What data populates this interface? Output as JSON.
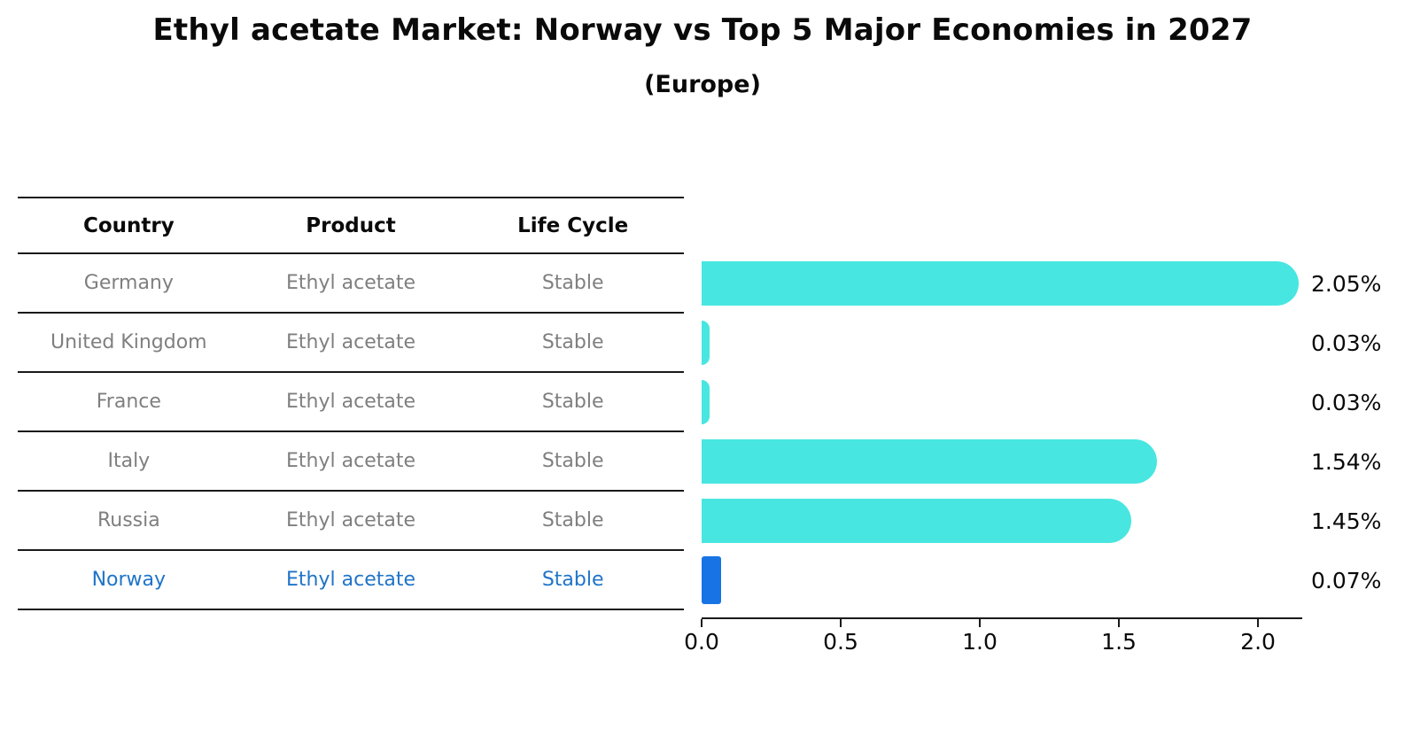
{
  "title": "Ethyl acetate Market: Norway vs Top 5 Major Economies in 2027",
  "subtitle": "(Europe)",
  "table": {
    "headers": [
      "Country",
      "Product",
      "Life Cycle"
    ],
    "rows": [
      {
        "country": "Germany",
        "product": "Ethyl acetate",
        "life_cycle": "Stable",
        "highlight": false
      },
      {
        "country": "United Kingdom",
        "product": "Ethyl acetate",
        "life_cycle": "Stable",
        "highlight": false
      },
      {
        "country": "France",
        "product": "Ethyl acetate",
        "life_cycle": "Stable",
        "highlight": false
      },
      {
        "country": "Italy",
        "product": "Ethyl acetate",
        "life_cycle": "Stable",
        "highlight": false
      },
      {
        "country": "Russia",
        "product": "Ethyl acetate",
        "life_cycle": "Stable",
        "highlight": false
      },
      {
        "country": "Norway",
        "product": "Ethyl acetate",
        "life_cycle": "Stable",
        "highlight": true
      }
    ]
  },
  "chart_data": {
    "type": "bar",
    "orientation": "horizontal",
    "title": "Ethyl acetate Market: Norway vs Top 5 Major Economies in 2027",
    "subtitle": "(Europe)",
    "categories": [
      "Germany",
      "United Kingdom",
      "France",
      "Italy",
      "Russia",
      "Norway"
    ],
    "values": [
      2.05,
      0.03,
      0.03,
      1.54,
      1.45,
      0.07
    ],
    "labels": [
      "2.05%",
      "0.03%",
      "0.03%",
      "1.54%",
      "1.45%",
      "0.07%"
    ],
    "tick_values": [
      0.0,
      0.5,
      1.0,
      1.5,
      2.0
    ],
    "tick_labels": [
      "0.0",
      "0.5",
      "1.0",
      "1.5",
      "2.0"
    ],
    "xlim": [
      0,
      2.159
    ],
    "xlabel": "",
    "ylabel": "",
    "grid": false,
    "legend": "none",
    "bar_color": "#48E6E0",
    "highlight_color": "#1874E5",
    "highlight_index": 5
  },
  "colors": {
    "bar": "#48E6E0",
    "highlight_bar": "#1874E5",
    "highlight_text": "#1F74C8",
    "table_text": "#7f7f7f",
    "heading_text": "#0a0a0a",
    "line": "#1a1a1a",
    "background": "#ffffff"
  }
}
